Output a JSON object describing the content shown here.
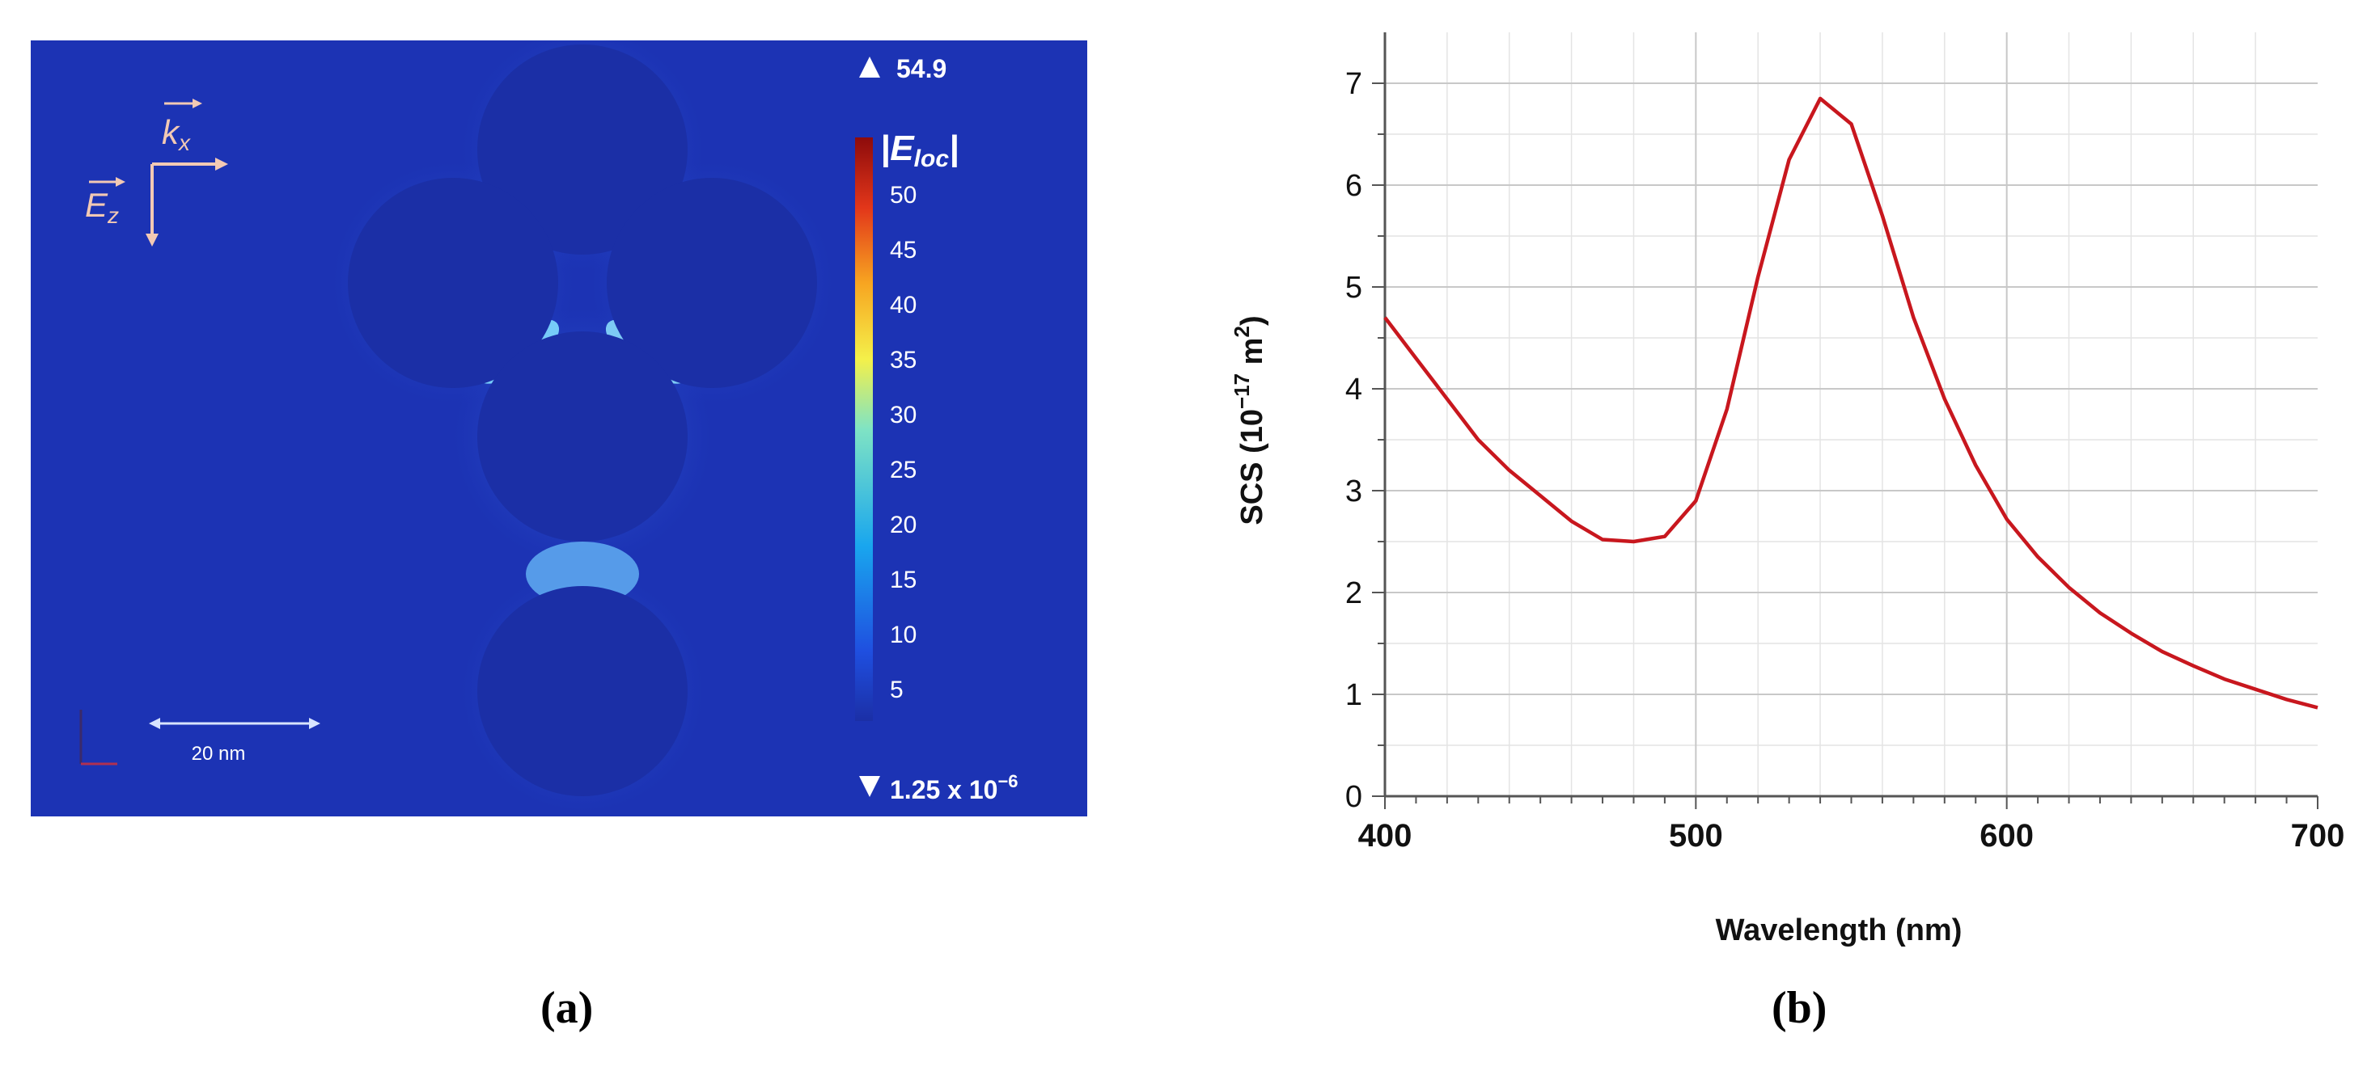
{
  "panel_a": {
    "label": "(a)",
    "colorbar_max": "54.9",
    "colorbar_min_base": "1.25 x 10",
    "colorbar_min_exp": "−6",
    "colorbar_title": "|E",
    "colorbar_title_sub": "loc",
    "colorbar_title_end": "|",
    "colorbar_ticks": [
      "50",
      "45",
      "40",
      "35",
      "30",
      "25",
      "20",
      "15",
      "10",
      "5"
    ],
    "k_label": "k",
    "k_sub": "x",
    "e_label": "E",
    "e_sub": "z",
    "scale_label": "20 nm",
    "colors": {
      "background": "#1c33b4",
      "sphere": "#1b2fa6",
      "hotspot": "#8ee4ff",
      "arrow": "#f2c9b4"
    }
  },
  "panel_b": {
    "label": "(b)"
  },
  "chart_data": {
    "type": "line",
    "xlabel": "Wavelength (nm)",
    "ylabel_base": "SCS (10",
    "ylabel_exp": "−17",
    "ylabel_unit": " m",
    "ylabel_unit_exp": "2",
    "ylabel_end": ")",
    "xlim": [
      400,
      700
    ],
    "ylim": [
      0,
      7.5
    ],
    "x_ticks": [
      "400",
      "500",
      "600",
      "700"
    ],
    "y_ticks": [
      "0",
      "1",
      "2",
      "3",
      "4",
      "5",
      "6",
      "7"
    ],
    "grid": true,
    "series": [
      {
        "color": "#c8171e",
        "x": [
          400,
          410,
          420,
          430,
          440,
          450,
          460,
          470,
          480,
          490,
          500,
          510,
          520,
          530,
          540,
          550,
          560,
          570,
          580,
          590,
          600,
          610,
          620,
          630,
          640,
          650,
          660,
          670,
          680,
          690,
          700
        ],
        "y": [
          4.7,
          4.3,
          3.9,
          3.5,
          3.2,
          2.95,
          2.7,
          2.52,
          2.5,
          2.55,
          2.9,
          3.8,
          5.1,
          6.25,
          6.85,
          6.6,
          5.7,
          4.7,
          3.9,
          3.25,
          2.72,
          2.35,
          2.05,
          1.8,
          1.6,
          1.42,
          1.28,
          1.15,
          1.05,
          0.95,
          0.87
        ]
      }
    ]
  }
}
